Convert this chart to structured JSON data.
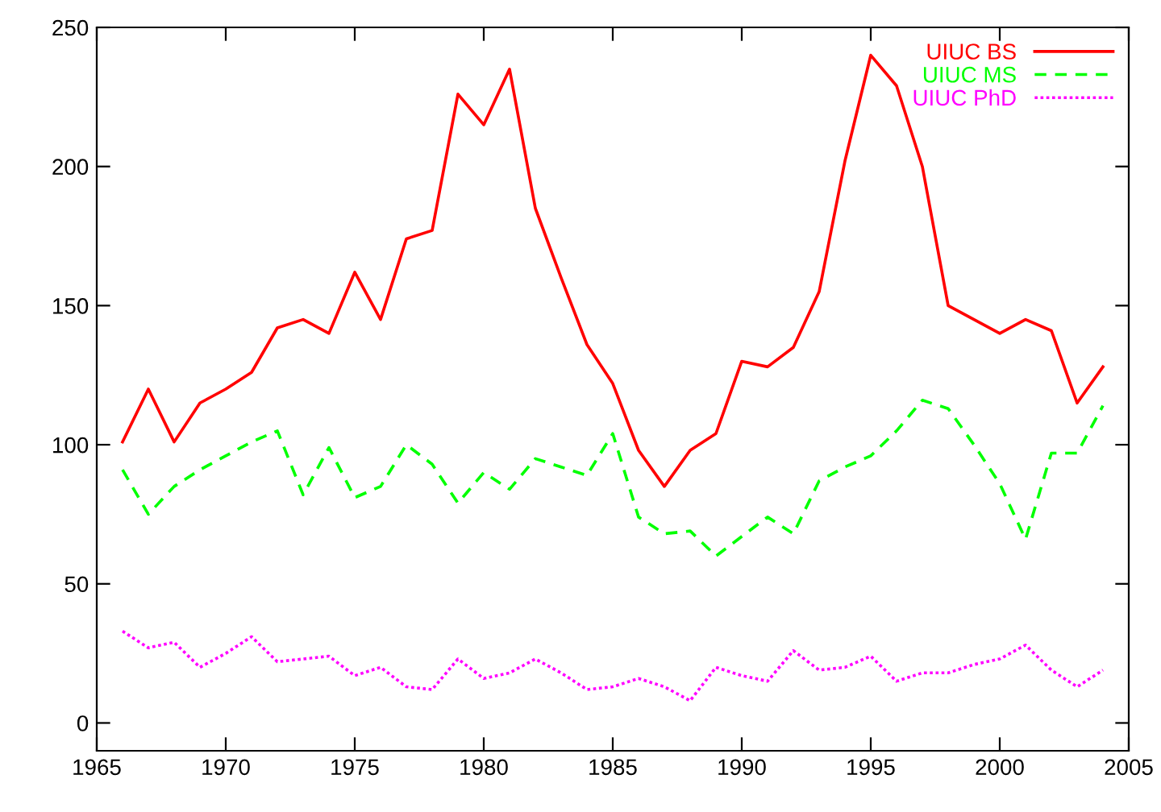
{
  "chart_data": {
    "type": "line",
    "x": [
      1966,
      1967,
      1968,
      1969,
      1970,
      1971,
      1972,
      1973,
      1974,
      1975,
      1976,
      1977,
      1978,
      1979,
      1980,
      1981,
      1982,
      1983,
      1984,
      1985,
      1986,
      1987,
      1988,
      1989,
      1990,
      1991,
      1992,
      1993,
      1994,
      1995,
      1996,
      1997,
      1998,
      1999,
      2000,
      2001,
      2002,
      2003,
      2004
    ],
    "series": [
      {
        "name": "UIUC BS",
        "color": "#ff0000",
        "line_style": "solid",
        "values": [
          101,
          120,
          101,
          115,
          120,
          126,
          142,
          145,
          140,
          162,
          145,
          174,
          177,
          226,
          215,
          235,
          185,
          160,
          136,
          122,
          98,
          85,
          98,
          104,
          130,
          128,
          135,
          155,
          202,
          240,
          229,
          200,
          150,
          145,
          140,
          145,
          141,
          115,
          128
        ]
      },
      {
        "name": "UIUC MS",
        "color": "#00ff00",
        "line_style": "dashed",
        "values": [
          91,
          75,
          85,
          91,
          96,
          101,
          105,
          82,
          99,
          81,
          85,
          100,
          93,
          79,
          90,
          84,
          95,
          92,
          89,
          104,
          74,
          68,
          69,
          60,
          67,
          74,
          68,
          87,
          92,
          96,
          105,
          116,
          113,
          100,
          86,
          66,
          97,
          97,
          114
        ]
      },
      {
        "name": "UIUC PhD",
        "color": "#ff00ff",
        "line_style": "dotted",
        "values": [
          33,
          27,
          29,
          20,
          25,
          31,
          22,
          23,
          24,
          17,
          20,
          13,
          12,
          23,
          16,
          18,
          23,
          18,
          12,
          13,
          16,
          13,
          8,
          20,
          17,
          15,
          26,
          19,
          20,
          24,
          15,
          18,
          18,
          21,
          23,
          28,
          19,
          13,
          19
        ]
      }
    ],
    "xlim": [
      1965,
      2005
    ],
    "xticks": [
      1965,
      1970,
      1975,
      1980,
      1985,
      1990,
      1995,
      2000,
      2005
    ],
    "ylim": [
      -10,
      250
    ],
    "yticks": [
      0,
      50,
      100,
      150,
      200,
      250
    ],
    "grid": false,
    "legend": "top right",
    "marker": "none"
  }
}
